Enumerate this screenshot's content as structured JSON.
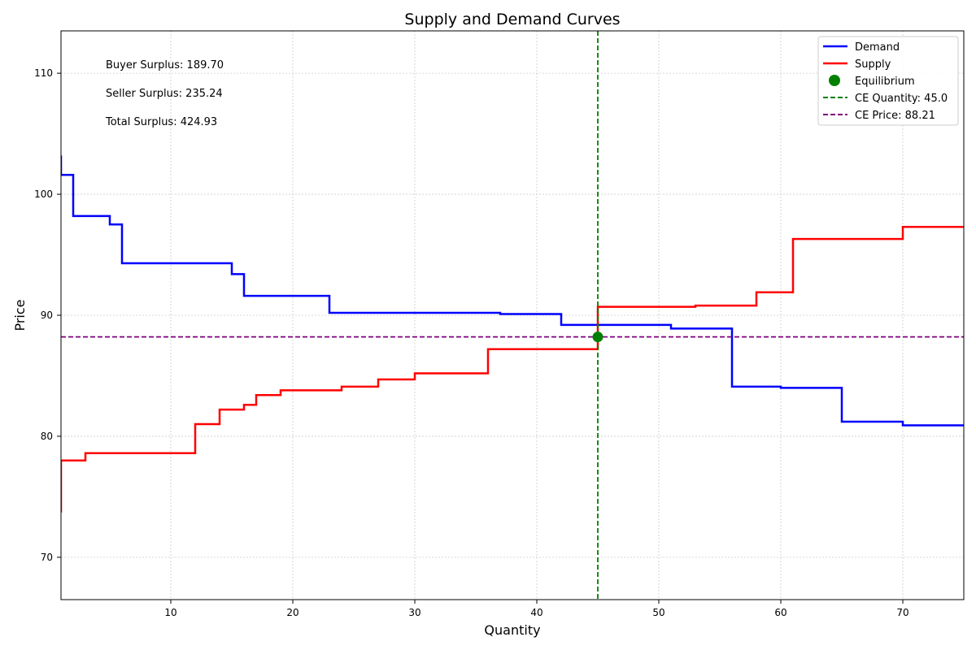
{
  "chart_data": {
    "type": "line",
    "title": "Supply and Demand Curves",
    "xlabel": "Quantity",
    "ylabel": "Price",
    "xlim": [
      1,
      75
    ],
    "ylim": [
      66.5,
      113.5
    ],
    "xticks": [
      10,
      20,
      30,
      40,
      50,
      60,
      70
    ],
    "yticks": [
      70,
      80,
      90,
      100,
      110
    ],
    "grid": true,
    "legend_position": "top-right",
    "series": [
      {
        "name": "Demand",
        "color": "#0000ff",
        "step": true,
        "points": [
          [
            1,
            103.2
          ],
          [
            1,
            101.6
          ],
          [
            2,
            101.6
          ],
          [
            2,
            98.2
          ],
          [
            5,
            98.2
          ],
          [
            5,
            97.5
          ],
          [
            6,
            97.5
          ],
          [
            6,
            94.3
          ],
          [
            15,
            94.3
          ],
          [
            15,
            93.4
          ],
          [
            16,
            93.4
          ],
          [
            16,
            91.6
          ],
          [
            23,
            91.6
          ],
          [
            23,
            90.2
          ],
          [
            37,
            90.2
          ],
          [
            37,
            90.1
          ],
          [
            42,
            90.1
          ],
          [
            42,
            89.2
          ],
          [
            51,
            89.2
          ],
          [
            51,
            88.9
          ],
          [
            56,
            88.9
          ],
          [
            56,
            84.1
          ],
          [
            60,
            84.1
          ],
          [
            60,
            84.0
          ],
          [
            65,
            84.0
          ],
          [
            65,
            81.2
          ],
          [
            70,
            81.2
          ],
          [
            70,
            80.9
          ],
          [
            75,
            80.9
          ]
        ]
      },
      {
        "name": "Supply",
        "color": "#ff0000",
        "step": true,
        "points": [
          [
            1,
            73.7
          ],
          [
            1,
            78.0
          ],
          [
            3,
            78.0
          ],
          [
            3,
            78.6
          ],
          [
            12,
            78.6
          ],
          [
            12,
            81.0
          ],
          [
            14,
            81.0
          ],
          [
            14,
            82.2
          ],
          [
            16,
            82.2
          ],
          [
            16,
            82.6
          ],
          [
            17,
            82.6
          ],
          [
            17,
            83.4
          ],
          [
            19,
            83.4
          ],
          [
            19,
            83.8
          ],
          [
            24,
            83.8
          ],
          [
            24,
            84.1
          ],
          [
            27,
            84.1
          ],
          [
            27,
            84.7
          ],
          [
            30,
            84.7
          ],
          [
            30,
            85.2
          ],
          [
            36,
            85.2
          ],
          [
            36,
            87.2
          ],
          [
            45,
            87.2
          ],
          [
            45,
            90.7
          ],
          [
            53,
            90.7
          ],
          [
            53,
            90.8
          ],
          [
            58,
            90.8
          ],
          [
            58,
            91.9
          ],
          [
            61,
            91.9
          ],
          [
            61,
            96.3
          ],
          [
            70,
            96.3
          ],
          [
            70,
            97.3
          ],
          [
            75,
            97.3
          ]
        ]
      }
    ],
    "equilibrium": {
      "name": "Equilibrium",
      "color": "#008000",
      "x": 45.0,
      "y": 88.21
    },
    "ce_quantity": {
      "label": "CE Quantity: 45.0",
      "value": 45.0,
      "color": "#008000"
    },
    "ce_price": {
      "label": "CE Price: 88.21",
      "value": 88.21,
      "color": "#800080"
    },
    "annotations": [
      "Buyer Surplus: 189.70",
      "Seller Surplus: 235.24",
      "Total Surplus: 424.93"
    ]
  }
}
